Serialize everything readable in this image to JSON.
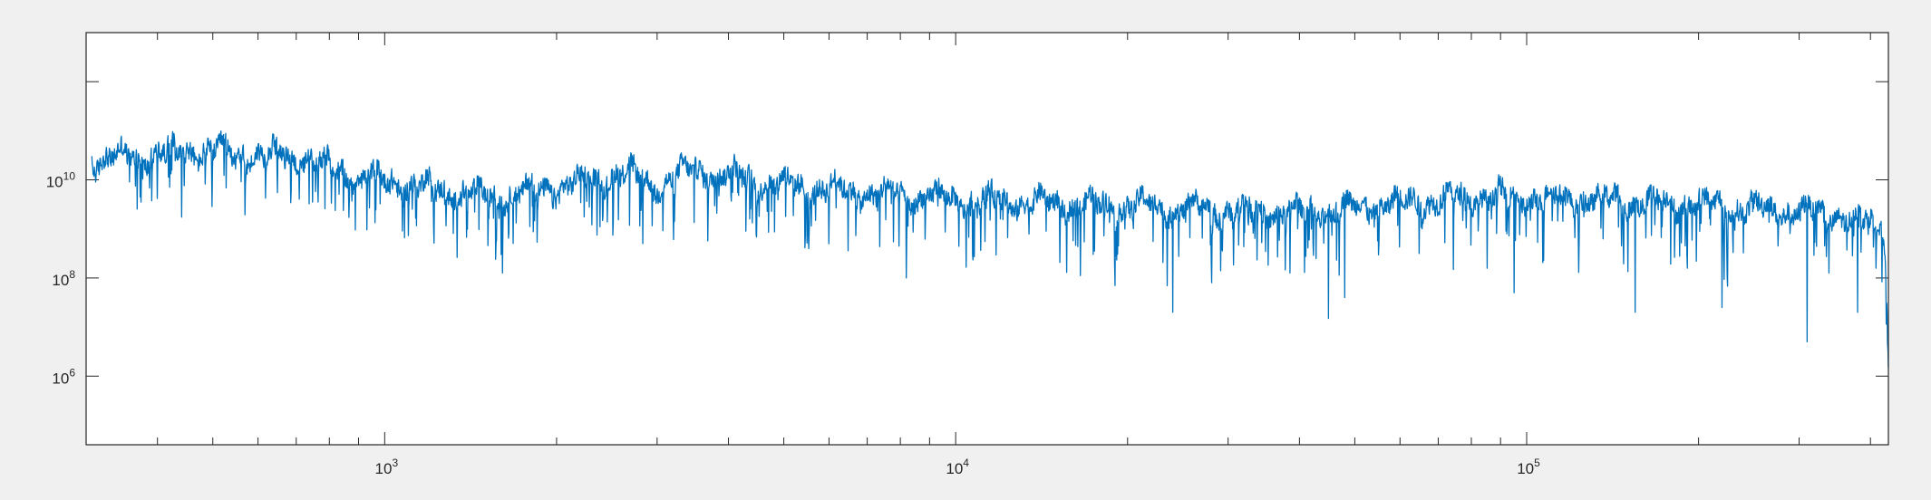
{
  "chart_data": {
    "type": "line",
    "title": "",
    "xlabel": "",
    "ylabel": "",
    "xscale": "log",
    "yscale": "log",
    "xlim": [
      300,
      430000
    ],
    "ylim": [
      40000,
      10000000000000
    ],
    "grid": false,
    "box": true,
    "line_color": "#0072bd",
    "background_color": "#f0f0f0",
    "axes_color": "#ffffff",
    "x_tick_labels": [
      "10^3",
      "10^4",
      "10^5"
    ],
    "y_tick_labels": [
      "10^6",
      "10^8",
      "10^10"
    ],
    "series": [
      {
        "style": "noisy-spectrum",
        "baseline": [
          [
            320,
            25000000000
          ],
          [
            450,
            40000000000
          ],
          [
            700,
            30000000000
          ],
          [
            900,
            12000000000
          ],
          [
            1500,
            4500000000
          ],
          [
            2000,
            7000000000
          ],
          [
            2600,
            15000000000
          ],
          [
            3000,
            8000000000
          ],
          [
            3500,
            16000000000
          ],
          [
            5000,
            8000000000
          ],
          [
            7000,
            5500000000
          ],
          [
            10000,
            4000000000
          ],
          [
            20000,
            3000000000
          ],
          [
            40000,
            2200000000
          ],
          [
            60000,
            3500000000
          ],
          [
            80000,
            4500000000
          ],
          [
            120000,
            4200000000
          ],
          [
            200000,
            3200000000
          ],
          [
            350000,
            2000000000
          ],
          [
            400000,
            1300000000
          ]
        ],
        "deep_dips": [
          [
            1600,
            300000000
          ],
          [
            8200,
            100000000
          ],
          [
            19000,
            70000000
          ],
          [
            24000,
            20000000
          ],
          [
            45000,
            15000000
          ],
          [
            48000,
            40000000
          ],
          [
            95000,
            50000000
          ],
          [
            155000,
            20000000
          ],
          [
            220000,
            25000000
          ],
          [
            310000,
            5000000
          ],
          [
            380000,
            20000000
          ]
        ],
        "end_value": [
          430000,
          1500000
        ]
      }
    ]
  }
}
